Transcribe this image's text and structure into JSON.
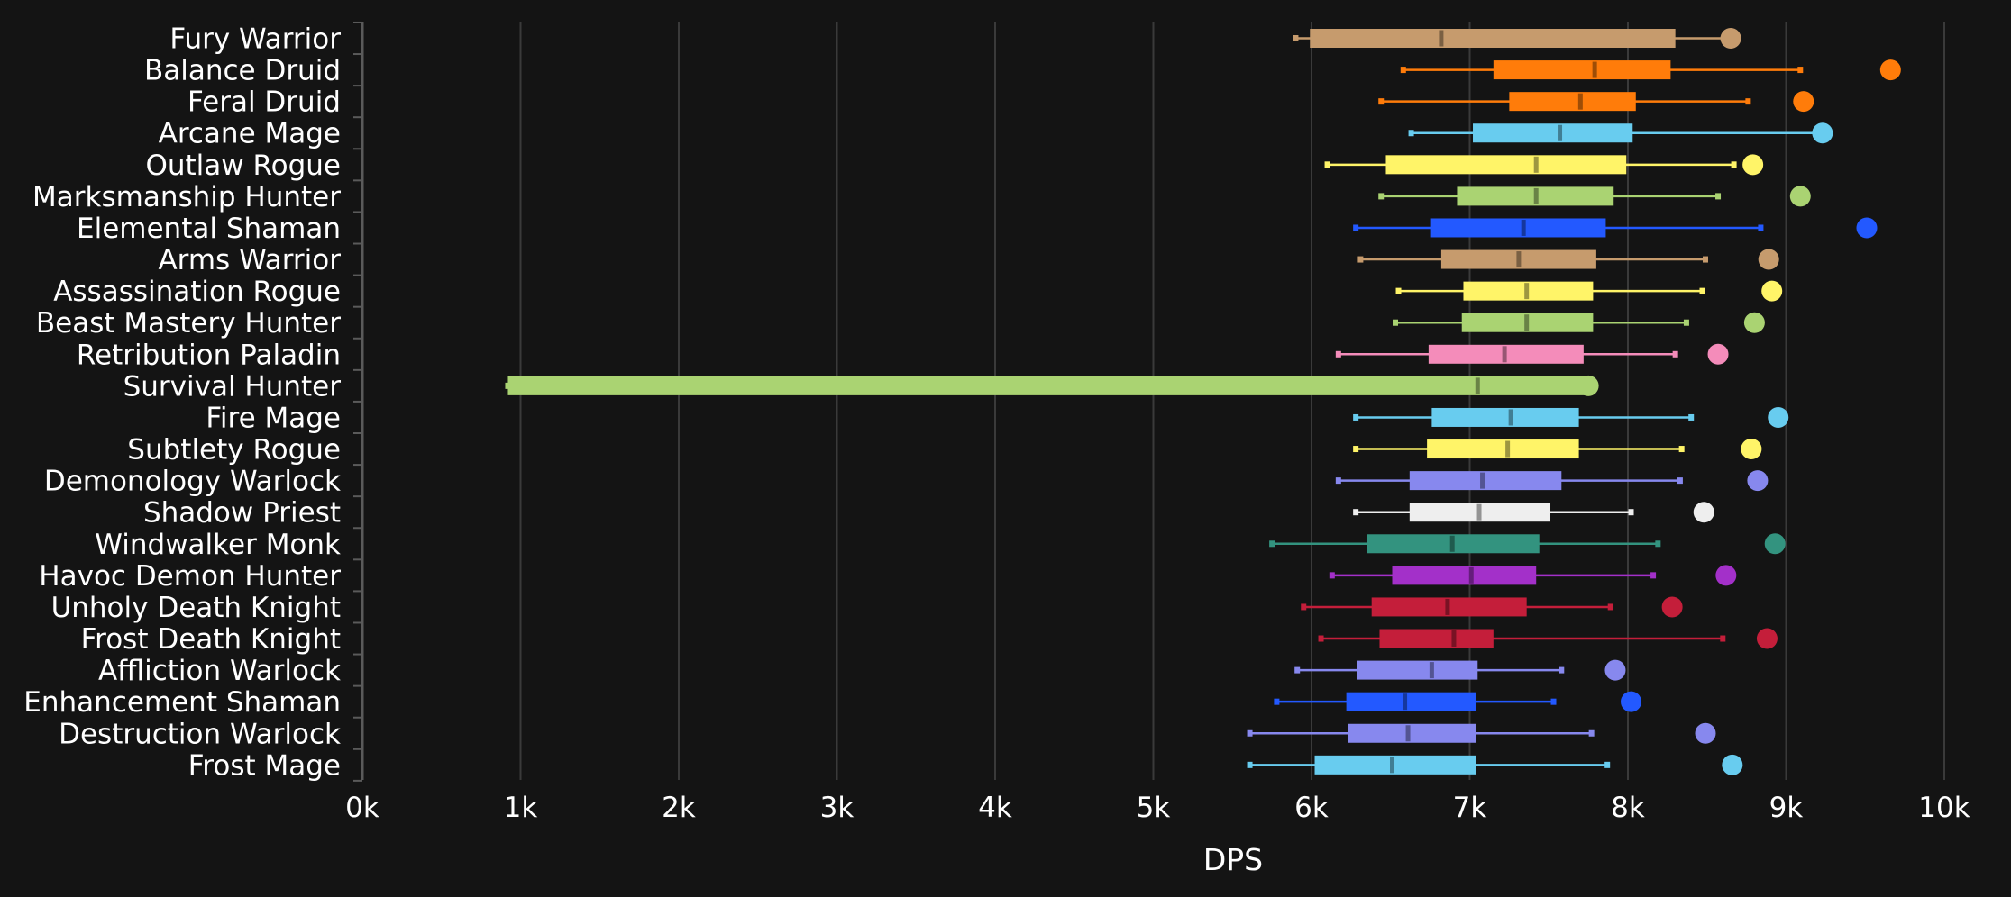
{
  "chart_data": {
    "type": "boxplot",
    "orientation": "horizontal",
    "title": "",
    "xlabel": "DPS",
    "ylabel": "",
    "xlim": [
      0,
      10000
    ],
    "x_ticks": [
      0,
      1000,
      2000,
      3000,
      4000,
      5000,
      6000,
      7000,
      8000,
      9000,
      10000
    ],
    "x_tick_labels": [
      "0k",
      "1k",
      "2k",
      "3k",
      "4k",
      "5k",
      "6k",
      "7k",
      "8k",
      "9k",
      "10k"
    ],
    "grid": "vertical",
    "legend": "none",
    "background": "#141414",
    "categories": [
      "Fury Warrior",
      "Balance Druid",
      "Feral Druid",
      "Arcane Mage",
      "Outlaw Rogue",
      "Marksmanship Hunter",
      "Elemental Shaman",
      "Arms Warrior",
      "Assassination Rogue",
      "Beast Mastery Hunter",
      "Retribution Paladin",
      "Survival Hunter",
      "Fire Mage",
      "Subtlety Rogue",
      "Demonology Warlock",
      "Shadow Priest",
      "Windwalker Monk",
      "Havoc Demon Hunter",
      "Unholy Death Knight",
      "Frost Death Knight",
      "Affliction Warlock",
      "Enhancement Shaman",
      "Destruction Warlock",
      "Frost Mage"
    ],
    "series": [
      {
        "color": "#C69B6D",
        "min": 5900,
        "q1": 5990,
        "median": 6820,
        "q3": 8300,
        "max": 8650,
        "max_marker": 8650
      },
      {
        "color": "#FF7C0A",
        "min": 6580,
        "q1": 7150,
        "median": 7790,
        "q3": 8270,
        "max": 9090,
        "max_marker": 9660
      },
      {
        "color": "#FF7C0A",
        "min": 6440,
        "q1": 7250,
        "median": 7700,
        "q3": 8050,
        "max": 8760,
        "max_marker": 9110
      },
      {
        "color": "#68CCEF",
        "min": 6630,
        "q1": 7020,
        "median": 7570,
        "q3": 8030,
        "max": 9210,
        "max_marker": 9230
      },
      {
        "color": "#FFF468",
        "min": 6100,
        "q1": 6470,
        "median": 7420,
        "q3": 7990,
        "max": 8670,
        "max_marker": 8790
      },
      {
        "color": "#AAD372",
        "min": 6440,
        "q1": 6920,
        "median": 7420,
        "q3": 7910,
        "max": 8570,
        "max_marker": 9090
      },
      {
        "color": "#2359FF",
        "min": 6280,
        "q1": 6750,
        "median": 7340,
        "q3": 7860,
        "max": 8840,
        "max_marker": 9510
      },
      {
        "color": "#C69B6D",
        "min": 6310,
        "q1": 6820,
        "median": 7310,
        "q3": 7800,
        "max": 8490,
        "max_marker": 8890
      },
      {
        "color": "#FFF468",
        "min": 6550,
        "q1": 6960,
        "median": 7360,
        "q3": 7780,
        "max": 8470,
        "max_marker": 8910
      },
      {
        "color": "#AAD372",
        "min": 6530,
        "q1": 6950,
        "median": 7360,
        "q3": 7780,
        "max": 8370,
        "max_marker": 8800
      },
      {
        "color": "#F48CBA",
        "min": 6170,
        "q1": 6740,
        "median": 7220,
        "q3": 7720,
        "max": 8300,
        "max_marker": 8570
      },
      {
        "color": "#AAD372",
        "min": 920,
        "q1": 920,
        "median": 7050,
        "q3": 7750,
        "max": 7750,
        "max_marker": 7750
      },
      {
        "color": "#68CCEF",
        "min": 6280,
        "q1": 6760,
        "median": 7260,
        "q3": 7690,
        "max": 8400,
        "max_marker": 8950
      },
      {
        "color": "#FFF468",
        "min": 6280,
        "q1": 6730,
        "median": 7240,
        "q3": 7690,
        "max": 8340,
        "max_marker": 8780
      },
      {
        "color": "#8788EE",
        "min": 6170,
        "q1": 6620,
        "median": 7080,
        "q3": 7580,
        "max": 8330,
        "max_marker": 8820
      },
      {
        "color": "#EEEEEE",
        "min": 6280,
        "q1": 6620,
        "median": 7060,
        "q3": 7510,
        "max": 8020,
        "max_marker": 8480
      },
      {
        "color": "#33937F",
        "min": 5750,
        "q1": 6350,
        "median": 6890,
        "q3": 7440,
        "max": 8190,
        "max_marker": 8930
      },
      {
        "color": "#A330C9",
        "min": 6130,
        "q1": 6510,
        "median": 7010,
        "q3": 7420,
        "max": 8160,
        "max_marker": 8620
      },
      {
        "color": "#C41E3A",
        "min": 5950,
        "q1": 6380,
        "median": 6860,
        "q3": 7360,
        "max": 7890,
        "max_marker": 8280
      },
      {
        "color": "#C41E3A",
        "min": 6060,
        "q1": 6430,
        "median": 6900,
        "q3": 7150,
        "max": 8600,
        "max_marker": 8880
      },
      {
        "color": "#8788EE",
        "min": 5910,
        "q1": 6290,
        "median": 6760,
        "q3": 7050,
        "max": 7580,
        "max_marker": 7920
      },
      {
        "color": "#2359FF",
        "min": 5780,
        "q1": 6220,
        "median": 6590,
        "q3": 7040,
        "max": 7530,
        "max_marker": 8020
      },
      {
        "color": "#8788EE",
        "min": 5610,
        "q1": 6230,
        "median": 6610,
        "q3": 7040,
        "max": 7770,
        "max_marker": 8490
      },
      {
        "color": "#68CCEF",
        "min": 5610,
        "q1": 6020,
        "median": 6510,
        "q3": 7040,
        "max": 7870,
        "max_marker": 8660
      }
    ]
  }
}
